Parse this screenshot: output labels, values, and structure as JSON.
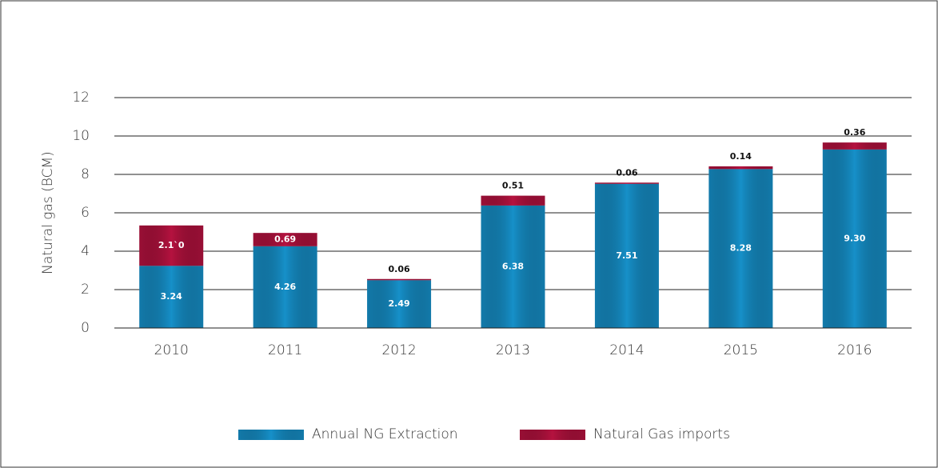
{
  "chart_data": {
    "type": "stacked_bar",
    "y_label": "Natural gas (BCM)",
    "categories": [
      "2010",
      "2011",
      "2012",
      "2013",
      "2014",
      "2015",
      "2016"
    ],
    "series": [
      {
        "name": "Annual NG Extraction",
        "color": "#1690c9",
        "values": [
          3.24,
          4.26,
          2.49,
          6.38,
          7.51,
          8.28,
          9.3
        ],
        "value_labels": [
          "3.24",
          "4.26",
          "2.49",
          "6.38",
          "7.51",
          "8.28",
          "9.30"
        ]
      },
      {
        "name": "Natural Gas imports",
        "color": "#b5123f",
        "values": [
          2.1,
          0.69,
          0.06,
          0.51,
          0.06,
          0.14,
          0.36
        ],
        "value_labels": [
          "2.1`0",
          "0.69",
          "0.06",
          "0.51",
          "0.06",
          "0.14",
          "0.36"
        ]
      }
    ],
    "ylim": [
      0,
      12
    ],
    "yticks": [
      0,
      2,
      4,
      6,
      8,
      10,
      12
    ],
    "grid": true,
    "legend": "bottom"
  }
}
